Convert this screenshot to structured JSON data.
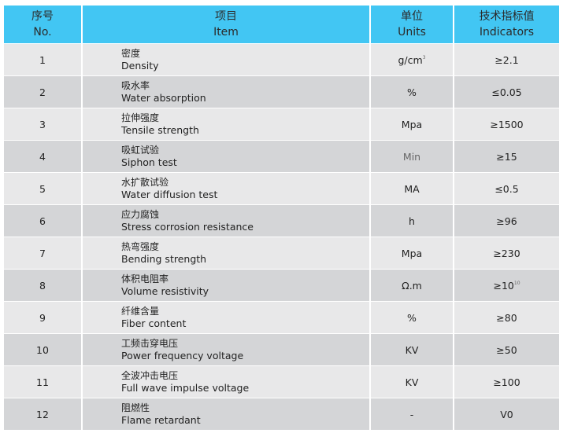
{
  "header": {
    "no_cn": "序号",
    "no_en": "No.",
    "item_cn": "项目",
    "item_en": "Item",
    "units_cn": "单位",
    "units_en": "Units",
    "ind_cn": "技术指标值",
    "ind_en": "Indicators"
  },
  "colors": {
    "header": "#42c6f3",
    "row_light": "#e8e8e9",
    "row_dark": "#d4d5d7"
  },
  "rows": [
    {
      "no": "1",
      "cn": "密度",
      "en": "Density",
      "unit": "g/cm",
      "unit_sup": "3",
      "ind": "≥2.1",
      "ind_sup": ""
    },
    {
      "no": "2",
      "cn": "吸水率",
      "en": "Water absorption",
      "unit": "%",
      "unit_sup": "",
      "ind": "≤0.05",
      "ind_sup": ""
    },
    {
      "no": "3",
      "cn": "拉伸强度",
      "en": "Tensile strength",
      "unit": "Mpa",
      "unit_sup": "",
      "ind": "≥1500",
      "ind_sup": ""
    },
    {
      "no": "4",
      "cn": "吸虹试验",
      "en": "Siphon test",
      "unit": "Min",
      "unit_sup": "",
      "ind": "≥15",
      "ind_sup": ""
    },
    {
      "no": "5",
      "cn": "水扩散试验",
      "en": "Water diffusion test",
      "unit": "MA",
      "unit_sup": "",
      "ind": "≤0.5",
      "ind_sup": ""
    },
    {
      "no": "6",
      "cn": "应力腐蚀",
      "en": "Stress corrosion resistance",
      "unit": "h",
      "unit_sup": "",
      "ind": "≥96",
      "ind_sup": ""
    },
    {
      "no": "7",
      "cn": "热弯强度",
      "en": "Bending strength",
      "unit": "Mpa",
      "unit_sup": "",
      "ind": "≥230",
      "ind_sup": ""
    },
    {
      "no": "8",
      "cn": "体积电阻率",
      "en": "Volume resistivity",
      "unit": "Ω.m",
      "unit_sup": "",
      "ind": "≥10",
      "ind_sup": "10"
    },
    {
      "no": "9",
      "cn": "纤维含量",
      "en": "Fiber content",
      "unit": "%",
      "unit_sup": "",
      "ind": "≥80",
      "ind_sup": ""
    },
    {
      "no": "10",
      "cn": "工频击穿电压",
      "en": "Power frequency voltage",
      "unit": "KV",
      "unit_sup": "",
      "ind": "≥50",
      "ind_sup": ""
    },
    {
      "no": "11",
      "cn": "全波冲击电压",
      "en": "Full wave impulse voltage",
      "unit": "KV",
      "unit_sup": "",
      "ind": "≥100",
      "ind_sup": ""
    },
    {
      "no": "12",
      "cn": "阻燃性",
      "en": "Flame retardant",
      "unit": "-",
      "unit_sup": "",
      "ind": "V0",
      "ind_sup": ""
    }
  ]
}
